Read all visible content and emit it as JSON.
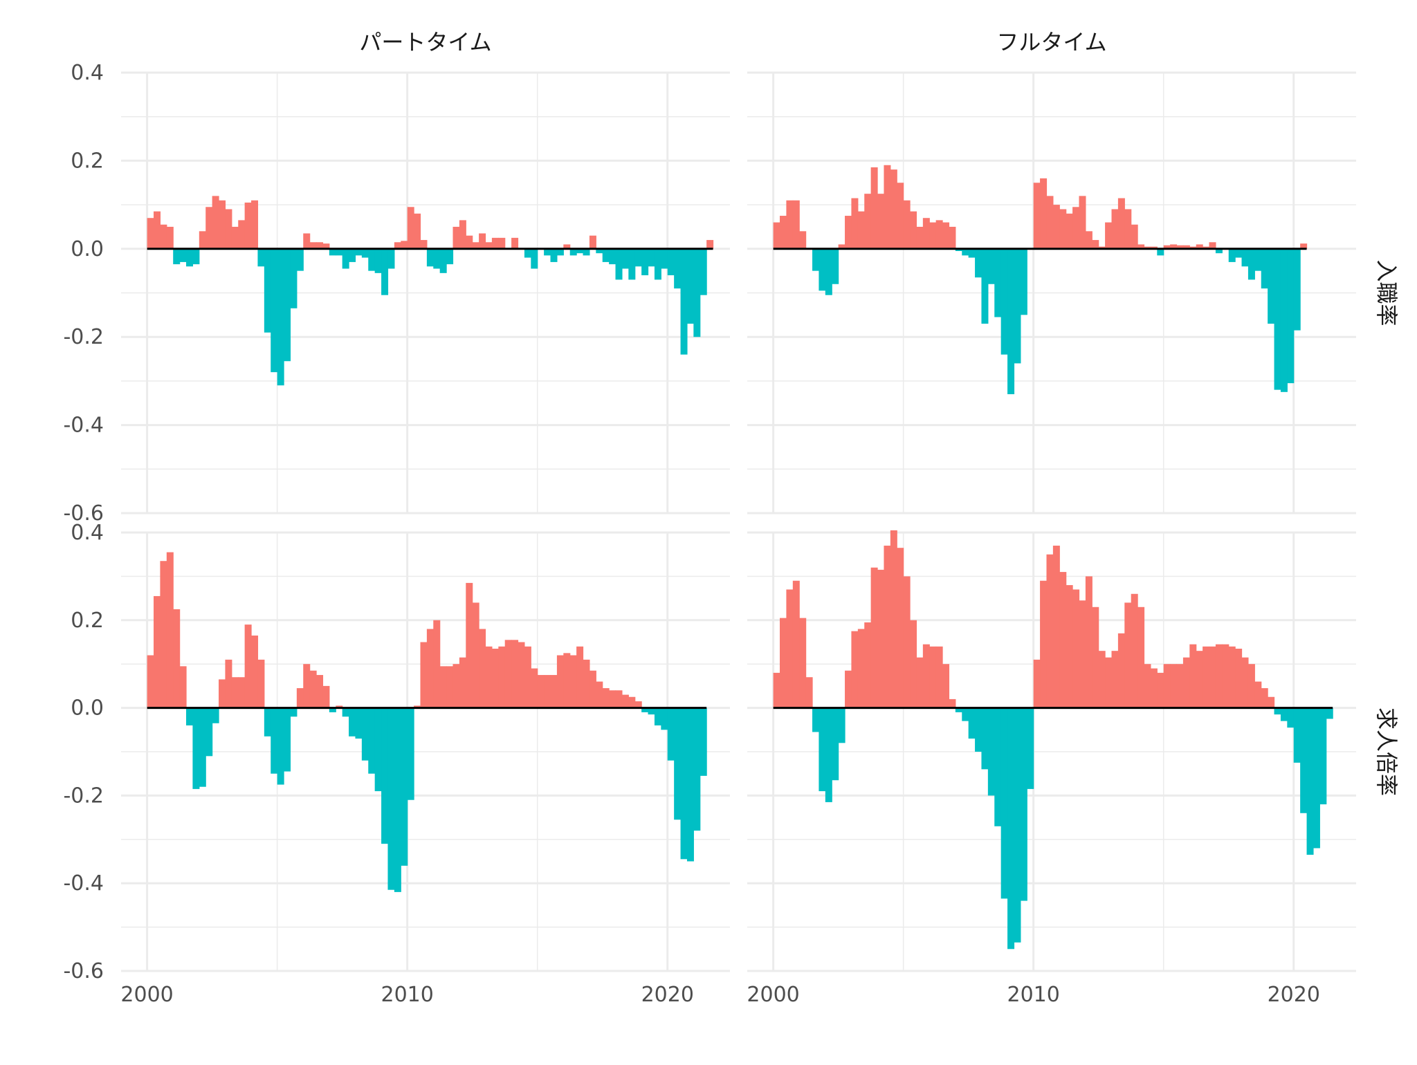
{
  "colors": {
    "positive": "#F8766D",
    "negative": "#00BFC4",
    "zero_line": "#000000",
    "grid": "#EBEBEB"
  },
  "chart_data": {
    "type": "bar",
    "layout": "facet-grid",
    "columns": [
      "パートタイム",
      "フルタイム"
    ],
    "rows": [
      "入職率",
      "求人倍率"
    ],
    "x_ticks": [
      2000,
      2010,
      2020
    ],
    "y_ticks": [
      "-0.6",
      "-0.4",
      "-0.2",
      "0.0",
      "0.2",
      "0.4"
    ],
    "xlim": [
      1999.0,
      2022.4
    ],
    "ylim": [
      -0.6,
      0.4
    ],
    "grid": true,
    "legend": "none",
    "bar_width": 0.25,
    "x_start": 2000.0,
    "panels": [
      {
        "column": "パートタイム",
        "row": "入職率",
        "values": [
          0.07,
          0.085,
          0.055,
          0.05,
          -0.035,
          -0.03,
          -0.04,
          -0.035,
          0.04,
          0.095,
          0.12,
          0.11,
          0.09,
          0.05,
          0.065,
          0.105,
          0.11,
          -0.04,
          -0.19,
          -0.28,
          -0.31,
          -0.255,
          -0.135,
          -0.05,
          0.035,
          0.015,
          0.015,
          0.012,
          -0.015,
          -0.015,
          -0.045,
          -0.03,
          -0.015,
          -0.02,
          -0.05,
          -0.055,
          -0.105,
          -0.045,
          0.015,
          0.018,
          0.095,
          0.08,
          0.02,
          -0.04,
          -0.045,
          -0.055,
          -0.035,
          0.05,
          0.065,
          0.03,
          0.015,
          0.035,
          0.015,
          0.025,
          0.025,
          0.002,
          0.025,
          0.002,
          -0.02,
          -0.045,
          -0.002,
          -0.015,
          -0.03,
          -0.015,
          0.01,
          -0.015,
          -0.01,
          -0.015,
          0.03,
          -0.01,
          -0.03,
          -0.035,
          -0.07,
          -0.045,
          -0.07,
          -0.04,
          -0.06,
          -0.04,
          -0.07,
          -0.045,
          -0.06,
          -0.09,
          -0.24,
          -0.17,
          -0.2,
          -0.105,
          0.02
        ]
      },
      {
        "column": "フルタイム",
        "row": "入職率",
        "values": [
          0.06,
          0.075,
          0.11,
          0.11,
          0.04,
          0.0,
          -0.05,
          -0.095,
          -0.105,
          -0.08,
          0.01,
          0.075,
          0.115,
          0.085,
          0.125,
          0.185,
          0.125,
          0.19,
          0.18,
          0.15,
          0.11,
          0.085,
          0.05,
          0.07,
          0.06,
          0.065,
          0.06,
          0.05,
          -0.005,
          -0.015,
          -0.02,
          -0.065,
          -0.17,
          -0.08,
          -0.155,
          -0.24,
          -0.33,
          -0.26,
          -0.15,
          0.0,
          0.15,
          0.16,
          0.12,
          0.1,
          0.09,
          0.08,
          0.095,
          0.12,
          0.04,
          0.02,
          0.005,
          0.06,
          0.09,
          0.115,
          0.09,
          0.055,
          0.01,
          0.005,
          0.005,
          -0.015,
          0.008,
          0.01,
          0.008,
          0.008,
          0.005,
          0.01,
          0.005,
          0.015,
          -0.01,
          0.0,
          -0.03,
          -0.02,
          -0.04,
          -0.07,
          -0.05,
          -0.09,
          -0.17,
          -0.32,
          -0.325,
          -0.305,
          -0.185,
          0.012
        ]
      },
      {
        "column": "パートタイム",
        "row": "求人倍率",
        "values": [
          0.12,
          0.255,
          0.335,
          0.355,
          0.225,
          0.095,
          -0.04,
          -0.185,
          -0.18,
          -0.11,
          -0.035,
          0.065,
          0.11,
          0.07,
          0.07,
          0.19,
          0.165,
          0.11,
          -0.065,
          -0.15,
          -0.175,
          -0.145,
          -0.02,
          0.045,
          0.1,
          0.085,
          0.075,
          0.05,
          -0.01,
          0.005,
          -0.02,
          -0.065,
          -0.07,
          -0.12,
          -0.15,
          -0.19,
          -0.31,
          -0.415,
          -0.42,
          -0.36,
          -0.21,
          0.005,
          0.15,
          0.18,
          0.2,
          0.095,
          0.095,
          0.1,
          0.115,
          0.285,
          0.24,
          0.18,
          0.14,
          0.135,
          0.14,
          0.155,
          0.155,
          0.15,
          0.14,
          0.09,
          0.075,
          0.075,
          0.075,
          0.12,
          0.125,
          0.12,
          0.14,
          0.11,
          0.085,
          0.06,
          0.045,
          0.04,
          0.04,
          0.03,
          0.025,
          0.015,
          -0.01,
          -0.015,
          -0.04,
          -0.05,
          -0.12,
          -0.255,
          -0.345,
          -0.35,
          -0.28,
          -0.155
        ]
      },
      {
        "column": "フルタイム",
        "row": "求人倍率",
        "values": [
          0.08,
          0.205,
          0.27,
          0.29,
          0.205,
          0.07,
          -0.055,
          -0.19,
          -0.215,
          -0.165,
          -0.08,
          0.085,
          0.175,
          0.18,
          0.195,
          0.32,
          0.315,
          0.37,
          0.405,
          0.365,
          0.3,
          0.2,
          0.115,
          0.145,
          0.14,
          0.14,
          0.1,
          0.02,
          -0.01,
          -0.03,
          -0.07,
          -0.1,
          -0.14,
          -0.2,
          -0.27,
          -0.435,
          -0.55,
          -0.535,
          -0.44,
          -0.185,
          0.11,
          0.29,
          0.35,
          0.37,
          0.31,
          0.28,
          0.27,
          0.245,
          0.3,
          0.23,
          0.13,
          0.115,
          0.13,
          0.17,
          0.24,
          0.26,
          0.23,
          0.1,
          0.09,
          0.08,
          0.1,
          0.1,
          0.1,
          0.115,
          0.145,
          0.13,
          0.14,
          0.14,
          0.145,
          0.145,
          0.14,
          0.135,
          0.115,
          0.1,
          0.06,
          0.045,
          0.025,
          -0.015,
          -0.03,
          -0.045,
          -0.125,
          -0.24,
          -0.335,
          -0.32,
          -0.22,
          -0.025
        ]
      }
    ]
  }
}
